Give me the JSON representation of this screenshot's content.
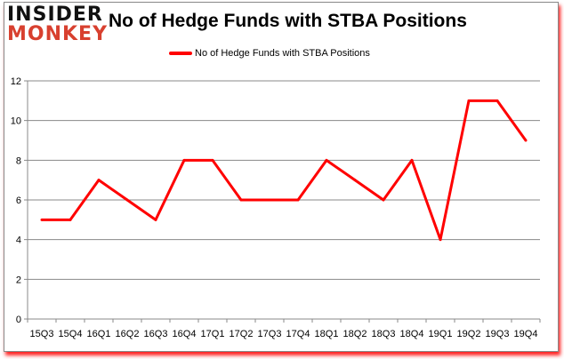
{
  "logo": {
    "line1": "INSIDER",
    "line2": "MONKEY"
  },
  "chart_data": {
    "type": "line",
    "title": "No of Hedge Funds with STBA Positions",
    "categories": [
      "15Q3",
      "15Q4",
      "16Q1",
      "16Q2",
      "16Q3",
      "16Q4",
      "17Q1",
      "17Q2",
      "17Q3",
      "17Q4",
      "18Q1",
      "18Q2",
      "18Q3",
      "18Q4",
      "19Q1",
      "19Q2",
      "19Q3",
      "19Q4"
    ],
    "series": [
      {
        "name": "No of Hedge Funds with STBA Positions",
        "values": [
          5,
          5,
          7,
          6,
          5,
          8,
          8,
          6,
          6,
          6,
          8,
          7,
          6,
          8,
          4,
          11,
          11,
          9
        ],
        "color": "#ff0000"
      }
    ],
    "yticks": [
      0,
      2,
      4,
      6,
      8,
      10,
      12
    ],
    "ylim": [
      0,
      12
    ],
    "grid": true,
    "legend": "top-center",
    "xlabel": "",
    "ylabel": ""
  }
}
